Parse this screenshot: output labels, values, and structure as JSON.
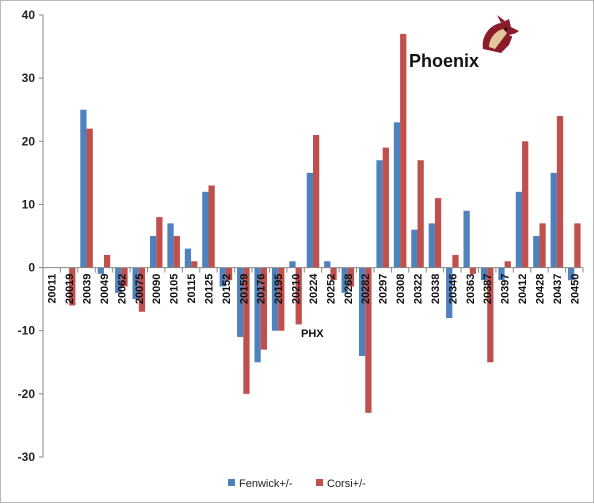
{
  "chart_data": {
    "type": "bar",
    "title": "Phoenix",
    "annotation": "PHX",
    "logo": "coyote-logo-icon",
    "ylim": [
      -30,
      40
    ],
    "yticks": [
      -30,
      -20,
      -10,
      0,
      10,
      20,
      30,
      40
    ],
    "grid": false,
    "legend_position": "bottom",
    "categories": [
      "20011",
      "20019",
      "20039",
      "20049",
      "20062",
      "20075",
      "20090",
      "20105",
      "20115",
      "20125",
      "20152",
      "20159",
      "20176",
      "20195",
      "20210",
      "20224",
      "20252",
      "20268",
      "20282",
      "20297",
      "20308",
      "20322",
      "20338",
      "20346",
      "20363",
      "20387",
      "20397",
      "20412",
      "20428",
      "20437",
      "20450"
    ],
    "series": [
      {
        "name": "Fenwick+/-",
        "color": "#4f81bd",
        "values": [
          0,
          0,
          25,
          -1,
          -4,
          -5,
          5,
          7,
          3,
          12,
          -3,
          -11,
          -15,
          -10,
          1,
          15,
          1,
          -4,
          -14,
          17,
          23,
          6,
          7,
          -8,
          9,
          -2,
          -2,
          12,
          5,
          15,
          -2
        ]
      },
      {
        "name": "Corsi+/-",
        "color": "#c0504d",
        "values": [
          0,
          -6,
          22,
          2,
          -3,
          -7,
          8,
          5,
          1,
          13,
          -2,
          -20,
          -13,
          -10,
          -9,
          21,
          -2,
          -3,
          -23,
          19,
          37,
          17,
          11,
          2,
          -1,
          -15,
          1,
          20,
          7,
          24,
          7
        ]
      }
    ]
  }
}
